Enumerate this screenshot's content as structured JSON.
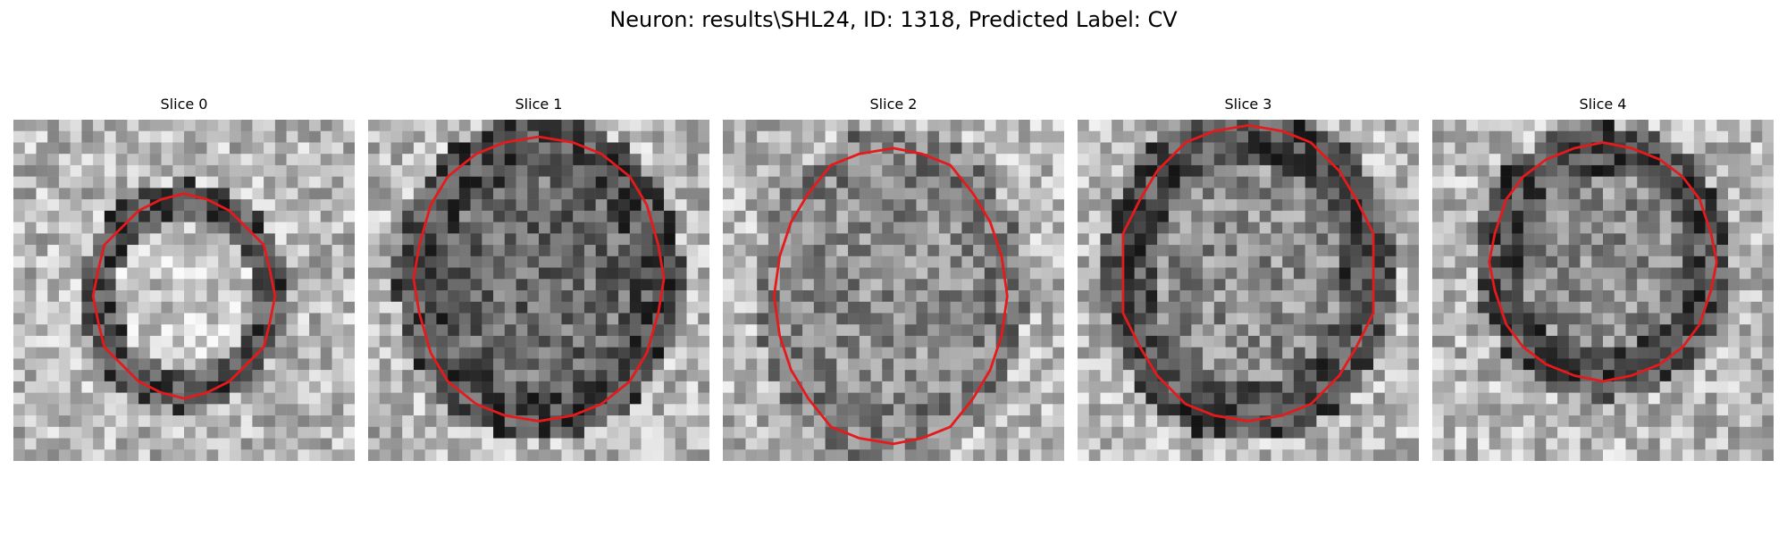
{
  "figure": {
    "title": "Neuron: results\\SHL24, ID: 1318, Predicted Label: CV",
    "panels": [
      {
        "label": "Slice 0",
        "center": "light",
        "ring": "dark",
        "seed": 11
      },
      {
        "label": "Slice 1",
        "center": "dark",
        "ring": "dark",
        "seed": 23
      },
      {
        "label": "Slice 2",
        "center": "mixed",
        "ring": "faint",
        "seed": 37
      },
      {
        "label": "Slice 3",
        "center": "mixed",
        "ring": "dark",
        "seed": 41
      },
      {
        "label": "Slice 4",
        "center": "mixed",
        "ring": "dark",
        "seed": 59
      }
    ],
    "image_colormap": "gray",
    "contour_color": "#e41a1c"
  }
}
